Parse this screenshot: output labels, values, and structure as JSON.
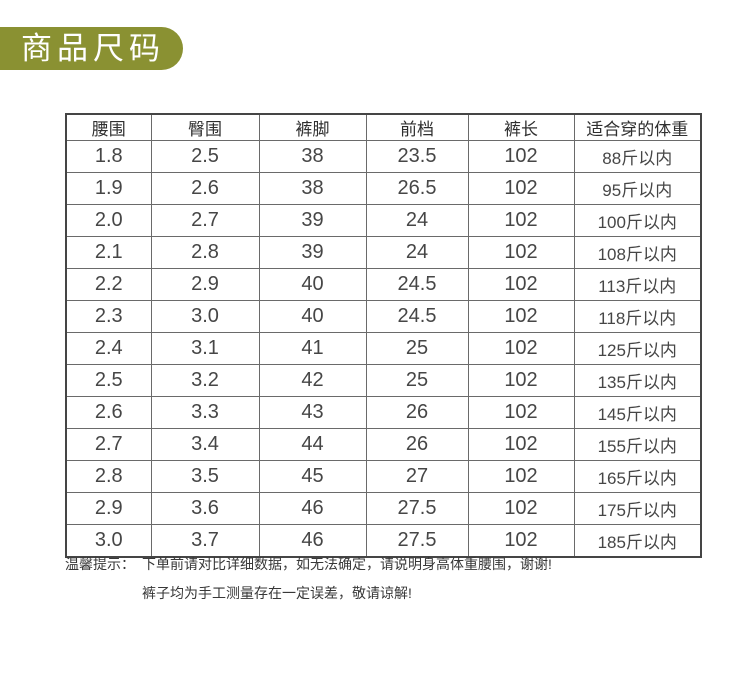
{
  "banner": {
    "title": "商品尺码",
    "bg_color": "#8a9132",
    "text_color": "#ffffff"
  },
  "size_table": {
    "headers": [
      "腰围",
      "臀围",
      "裤脚",
      "前档",
      "裤长",
      "适合穿的体重"
    ],
    "rows": [
      [
        "1.8",
        "2.5",
        "38",
        "23.5",
        "102",
        "88斤以内"
      ],
      [
        "1.9",
        "2.6",
        "38",
        "26.5",
        "102",
        "95斤以内"
      ],
      [
        "2.0",
        "2.7",
        "39",
        "24",
        "102",
        "100斤以内"
      ],
      [
        "2.1",
        "2.8",
        "39",
        "24",
        "102",
        "108斤以内"
      ],
      [
        "2.2",
        "2.9",
        "40",
        "24.5",
        "102",
        "113斤以内"
      ],
      [
        "2.3",
        "3.0",
        "40",
        "24.5",
        "102",
        "118斤以内"
      ],
      [
        "2.4",
        "3.1",
        "41",
        "25",
        "102",
        "125斤以内"
      ],
      [
        "2.5",
        "3.2",
        "42",
        "25",
        "102",
        "135斤以内"
      ],
      [
        "2.6",
        "3.3",
        "43",
        "26",
        "102",
        "145斤以内"
      ],
      [
        "2.7",
        "3.4",
        "44",
        "26",
        "102",
        "155斤以内"
      ],
      [
        "2.8",
        "3.5",
        "45",
        "27",
        "102",
        "165斤以内"
      ],
      [
        "2.9",
        "3.6",
        "46",
        "27.5",
        "102",
        "175斤以内"
      ],
      [
        "3.0",
        "3.7",
        "46",
        "27.5",
        "102",
        "185斤以内"
      ]
    ]
  },
  "note": {
    "label": "温馨提示：",
    "lines": [
      "下单前请对比详细数据，如无法确定，请说明身高体重腰围，谢谢!",
      "裤子均为手工测量存在一定误差，敬请谅解!"
    ]
  }
}
